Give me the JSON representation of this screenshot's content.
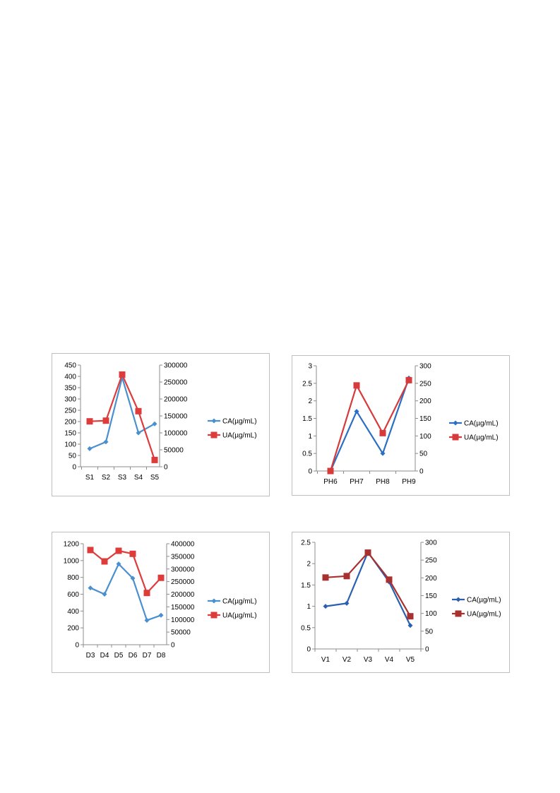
{
  "colors": {
    "ca_primary": "#4a90cf",
    "ua_primary": "#de3b3b",
    "ca_dark": "#2a60b0",
    "ua_dark": "#a8302f"
  },
  "chart_data": [
    {
      "id": "chart-s",
      "type": "line",
      "categories": [
        "S1",
        "S2",
        "S3",
        "S4",
        "S5"
      ],
      "y_left": {
        "min": 0,
        "max": 450,
        "step": 50,
        "ticks": [
          "0",
          "50",
          "100",
          "150",
          "200",
          "250",
          "300",
          "350",
          "400",
          "450"
        ]
      },
      "y_right": {
        "min": 0,
        "max": 300000,
        "step": 50000,
        "ticks": [
          "0",
          "50000",
          "100000",
          "150000",
          "200000",
          "250000",
          "300000"
        ]
      },
      "series": [
        {
          "name": "CA(µg/mL)",
          "axis": "left",
          "marker": "diamond",
          "color": "#4a90cf",
          "values": [
            80,
            110,
            395,
            150,
            190
          ]
        },
        {
          "name": "UA(µg/mL)",
          "axis": "right",
          "marker": "square",
          "color": "#de3b3b",
          "values": [
            134000,
            136000,
            272000,
            164000,
            20000
          ]
        }
      ],
      "legend": "right",
      "grid": false
    },
    {
      "id": "chart-ph",
      "type": "line",
      "categories": [
        "PH6",
        "PH7",
        "PH8",
        "PH9"
      ],
      "y_left": {
        "min": 0,
        "max": 3,
        "step": 0.5,
        "ticks": [
          "0",
          "0.5",
          "1",
          "1.5",
          "2",
          "2.5",
          "3"
        ]
      },
      "y_right": {
        "min": 0,
        "max": 300,
        "step": 50,
        "ticks": [
          "0",
          "50",
          "100",
          "150",
          "200",
          "250",
          "300"
        ]
      },
      "series": [
        {
          "name": "CA(µg/mL)",
          "axis": "left",
          "marker": "diamond",
          "color": "#2a6fc4",
          "values": [
            0,
            1.7,
            0.5,
            2.65
          ]
        },
        {
          "name": "UA(µg/mL)",
          "axis": "right",
          "marker": "square",
          "color": "#d63a3a",
          "values": [
            0,
            244,
            108,
            259
          ]
        }
      ],
      "legend": "right",
      "grid": false
    },
    {
      "id": "chart-d",
      "type": "line",
      "categories": [
        "D3",
        "D4",
        "D5",
        "D6",
        "D7",
        "D8"
      ],
      "y_left": {
        "min": 0,
        "max": 1200,
        "step": 200,
        "ticks": [
          "0",
          "200",
          "400",
          "600",
          "800",
          "1000",
          "1200"
        ]
      },
      "y_right": {
        "min": 0,
        "max": 400000,
        "step": 50000,
        "ticks": [
          "0",
          "50000",
          "100000",
          "150000",
          "200000",
          "250000",
          "300000",
          "350000",
          "400000"
        ]
      },
      "series": [
        {
          "name": "CA(µg/mL)",
          "axis": "left",
          "marker": "diamond",
          "color": "#4a90cf",
          "values": [
            675,
            600,
            960,
            790,
            290,
            350
          ]
        },
        {
          "name": "UA(µg/mL)",
          "axis": "right",
          "marker": "square",
          "color": "#de3b3b",
          "values": [
            375000,
            330000,
            372000,
            360000,
            205000,
            265000
          ]
        }
      ],
      "legend": "right",
      "grid": false
    },
    {
      "id": "chart-v",
      "type": "line",
      "categories": [
        "V1",
        "V2",
        "V3",
        "V4",
        "V5"
      ],
      "y_left": {
        "min": 0,
        "max": 2.5,
        "step": 0.5,
        "ticks": [
          "0",
          "0.5",
          "1",
          "1.5",
          "2",
          "2.5"
        ]
      },
      "y_right": {
        "min": 0,
        "max": 300,
        "step": 50,
        "ticks": [
          "0",
          "50",
          "100",
          "150",
          "200",
          "250",
          "300"
        ]
      },
      "series": [
        {
          "name": "CA(µg/mL)",
          "axis": "left",
          "marker": "diamond",
          "color": "#2a60b0",
          "values": [
            1.0,
            1.07,
            2.27,
            1.57,
            0.55
          ]
        },
        {
          "name": "UA(µg/mL)",
          "axis": "right",
          "marker": "square",
          "color": "#a8302f",
          "values": [
            201,
            205,
            271,
            195,
            92
          ]
        }
      ],
      "legend": "right",
      "grid": false
    }
  ]
}
